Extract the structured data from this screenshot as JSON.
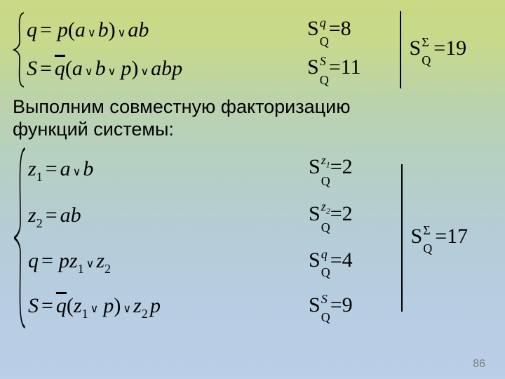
{
  "top_system": {
    "brace_height": 110,
    "sep_height": 110,
    "lines": [
      {
        "eq_html": "<span class='math'>q</span> <span class='mathU'>=</span> &nbsp;<span class='math'>p</span><span class='mathU'>(</span><span class='math'>a</span><span class='or'>&or;</span><span class='math'>b</span><span class='mathU'>)</span><span class='or'>&or;</span><span class='math'>ab</span>",
        "sq_sup": "q",
        "sq_sup_italic": true,
        "sq_val": "8"
      },
      {
        "eq_html": "<span class='math'>S</span> <span class='mathU'>=</span> <span class='overbar math'>q</span><span class='mathU'>(</span><span class='math'>a</span><span class='or'>&or;</span><span class='math'>b</span><span class='or'>&or;</span>&nbsp;<span class='math'>p</span><span class='mathU'>)</span><span class='or'>&or;</span><span class='math'>abp</span>",
        "sq_sup": "S",
        "sq_sup_italic": true,
        "sq_val": "11"
      }
    ],
    "sigma_val": "19"
  },
  "mid_text_l1": "Выполним  совместную факторизацию",
  "mid_text_l2": "функций системы:",
  "bot_system": {
    "brace_height": 260,
    "sep_height": 210,
    "lines": [
      {
        "eq_html": "<span class='math'>z</span><span class='sub mathU'>1</span> <span class='mathU'>=</span> <span class='math'>a</span><span class='or'>&or;</span><span class='math'>b</span>",
        "sq_sup": "z<span style='font-size:12px;vertical-align:sub;'>1</span>",
        "sq_sup_italic": true,
        "sq_val": "2"
      },
      {
        "eq_html": "<span class='math'>z</span><span class='sub mathU'>2</span> <span class='mathU'>=</span> <span class='math'>ab</span>",
        "sq_sup": "z<span style='font-size:12px;vertical-align:sub;'>2</span>",
        "sq_sup_italic": true,
        "sq_val": "2"
      },
      {
        "eq_html": "<span class='math'>q</span> <span class='mathU'>=</span> &nbsp;<span class='math'>pz</span><span class='sub mathU'>1</span><span class='or'>&or;</span><span class='math'>z</span><span class='sub mathU'>2</span>",
        "sq_sup": "q",
        "sq_sup_italic": true,
        "sq_val": "4"
      },
      {
        "eq_html": "<span class='math'>S</span> <span class='mathU'>=</span> <span class='overbar math'>q</span><span class='mathU'>(</span><span class='math'>z</span><span class='sub mathU'>1</span><span class='or'>&or;</span>&nbsp;<span class='math'>p</span><span class='mathU'>)</span><span class='or'>&or;</span><span class='math'>z</span><span class='sub mathU'>2</span>&thinsp;<span class='math'>p</span>",
        "sq_sup": "S",
        "sq_sup_italic": true,
        "sq_val": "9"
      }
    ],
    "sigma_val": "17"
  },
  "page_number": "86",
  "colors": {
    "text": "#000000",
    "pagenum": "#7f7f7f"
  }
}
